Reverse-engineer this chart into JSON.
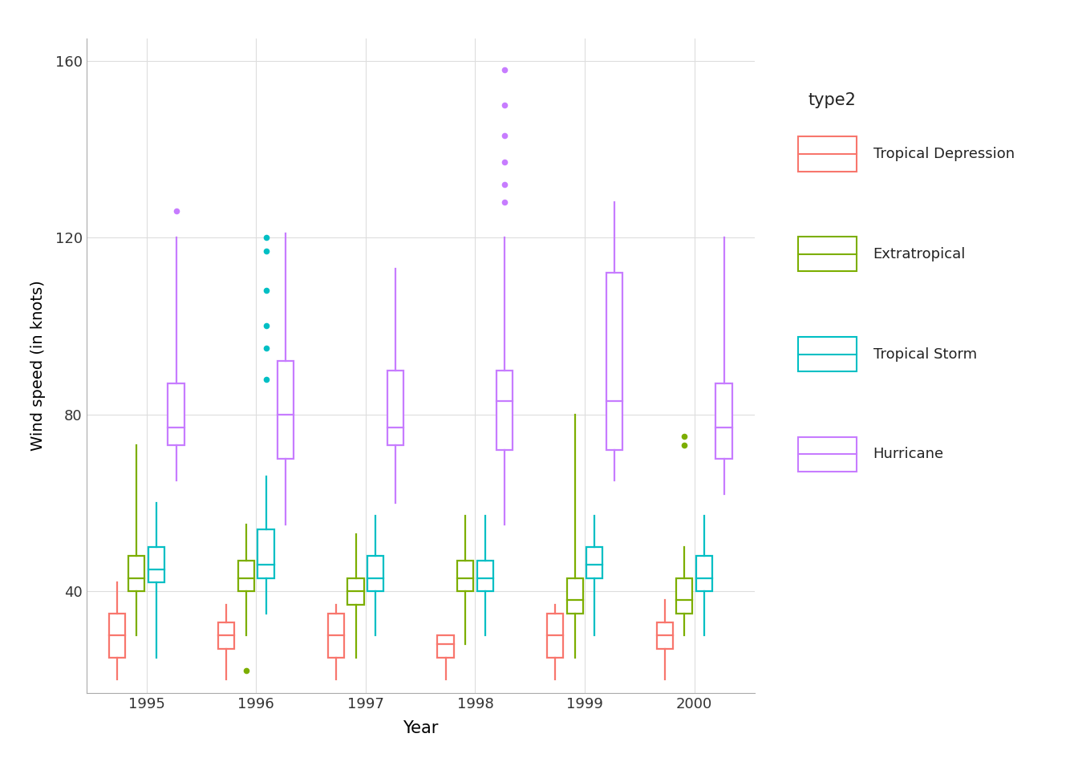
{
  "years": [
    1995,
    1996,
    1997,
    1998,
    1999,
    2000
  ],
  "types": [
    "Tropical Depression",
    "Extratropical",
    "Tropical Storm",
    "Hurricane"
  ],
  "colors": {
    "Tropical Depression": "#F8766D",
    "Extratropical": "#7CAE00",
    "Tropical Storm": "#00BFC4",
    "Hurricane": "#C77CFF"
  },
  "box_data": {
    "1995": {
      "Tropical Depression": {
        "q1": 25,
        "median": 30,
        "q3": 35,
        "whisker_low": 20,
        "whisker_high": 42,
        "outliers": []
      },
      "Extratropical": {
        "q1": 40,
        "median": 43,
        "q3": 48,
        "whisker_low": 30,
        "whisker_high": 73,
        "outliers": []
      },
      "Tropical Storm": {
        "q1": 42,
        "median": 45,
        "q3": 50,
        "whisker_low": 25,
        "whisker_high": 60,
        "outliers": []
      },
      "Hurricane": {
        "q1": 73,
        "median": 77,
        "q3": 87,
        "whisker_low": 65,
        "whisker_high": 120,
        "outliers": [
          126
        ]
      }
    },
    "1996": {
      "Tropical Depression": {
        "q1": 27,
        "median": 30,
        "q3": 33,
        "whisker_low": 20,
        "whisker_high": 37,
        "outliers": []
      },
      "Extratropical": {
        "q1": 40,
        "median": 43,
        "q3": 47,
        "whisker_low": 30,
        "whisker_high": 55,
        "outliers": [
          22
        ]
      },
      "Tropical Storm": {
        "q1": 43,
        "median": 46,
        "q3": 54,
        "whisker_low": 35,
        "whisker_high": 66,
        "outliers": [
          88,
          95,
          100,
          108,
          117,
          120
        ]
      },
      "Hurricane": {
        "q1": 70,
        "median": 80,
        "q3": 92,
        "whisker_low": 55,
        "whisker_high": 121,
        "outliers": []
      }
    },
    "1997": {
      "Tropical Depression": {
        "q1": 25,
        "median": 30,
        "q3": 35,
        "whisker_low": 20,
        "whisker_high": 37,
        "outliers": []
      },
      "Extratropical": {
        "q1": 37,
        "median": 40,
        "q3": 43,
        "whisker_low": 25,
        "whisker_high": 53,
        "outliers": []
      },
      "Tropical Storm": {
        "q1": 40,
        "median": 43,
        "q3": 48,
        "whisker_low": 30,
        "whisker_high": 57,
        "outliers": []
      },
      "Hurricane": {
        "q1": 73,
        "median": 77,
        "q3": 90,
        "whisker_low": 60,
        "whisker_high": 113,
        "outliers": []
      }
    },
    "1998": {
      "Tropical Depression": {
        "q1": 25,
        "median": 28,
        "q3": 30,
        "whisker_low": 20,
        "whisker_high": 30,
        "outliers": []
      },
      "Extratropical": {
        "q1": 40,
        "median": 43,
        "q3": 47,
        "whisker_low": 28,
        "whisker_high": 57,
        "outliers": []
      },
      "Tropical Storm": {
        "q1": 40,
        "median": 43,
        "q3": 47,
        "whisker_low": 30,
        "whisker_high": 57,
        "outliers": []
      },
      "Hurricane": {
        "q1": 72,
        "median": 83,
        "q3": 90,
        "whisker_low": 55,
        "whisker_high": 120,
        "outliers": [
          128,
          132,
          137,
          143,
          150,
          158
        ]
      }
    },
    "1999": {
      "Tropical Depression": {
        "q1": 25,
        "median": 30,
        "q3": 35,
        "whisker_low": 20,
        "whisker_high": 37,
        "outliers": []
      },
      "Extratropical": {
        "q1": 35,
        "median": 38,
        "q3": 43,
        "whisker_low": 25,
        "whisker_high": 80,
        "outliers": []
      },
      "Tropical Storm": {
        "q1": 43,
        "median": 46,
        "q3": 50,
        "whisker_low": 30,
        "whisker_high": 57,
        "outliers": []
      },
      "Hurricane": {
        "q1": 72,
        "median": 83,
        "q3": 112,
        "whisker_low": 65,
        "whisker_high": 128,
        "outliers": []
      }
    },
    "2000": {
      "Tropical Depression": {
        "q1": 27,
        "median": 30,
        "q3": 33,
        "whisker_low": 20,
        "whisker_high": 38,
        "outliers": []
      },
      "Extratropical": {
        "q1": 35,
        "median": 38,
        "q3": 43,
        "whisker_low": 30,
        "whisker_high": 50,
        "outliers": [
          75,
          73
        ]
      },
      "Tropical Storm": {
        "q1": 40,
        "median": 43,
        "q3": 48,
        "whisker_low": 30,
        "whisker_high": 57,
        "outliers": []
      },
      "Hurricane": {
        "q1": 70,
        "median": 77,
        "q3": 87,
        "whisker_low": 62,
        "whisker_high": 120,
        "outliers": []
      }
    }
  },
  "ylabel": "Wind speed (in knots)",
  "xlabel": "Year",
  "legend_title": "type2",
  "ylim": [
    17,
    165
  ],
  "yticks": [
    40,
    80,
    120,
    160
  ],
  "background_color": "#ffffff",
  "grid_color": "#dddddd",
  "type_order": [
    "Tropical Depression",
    "Extratropical",
    "Tropical Storm",
    "Hurricane"
  ]
}
